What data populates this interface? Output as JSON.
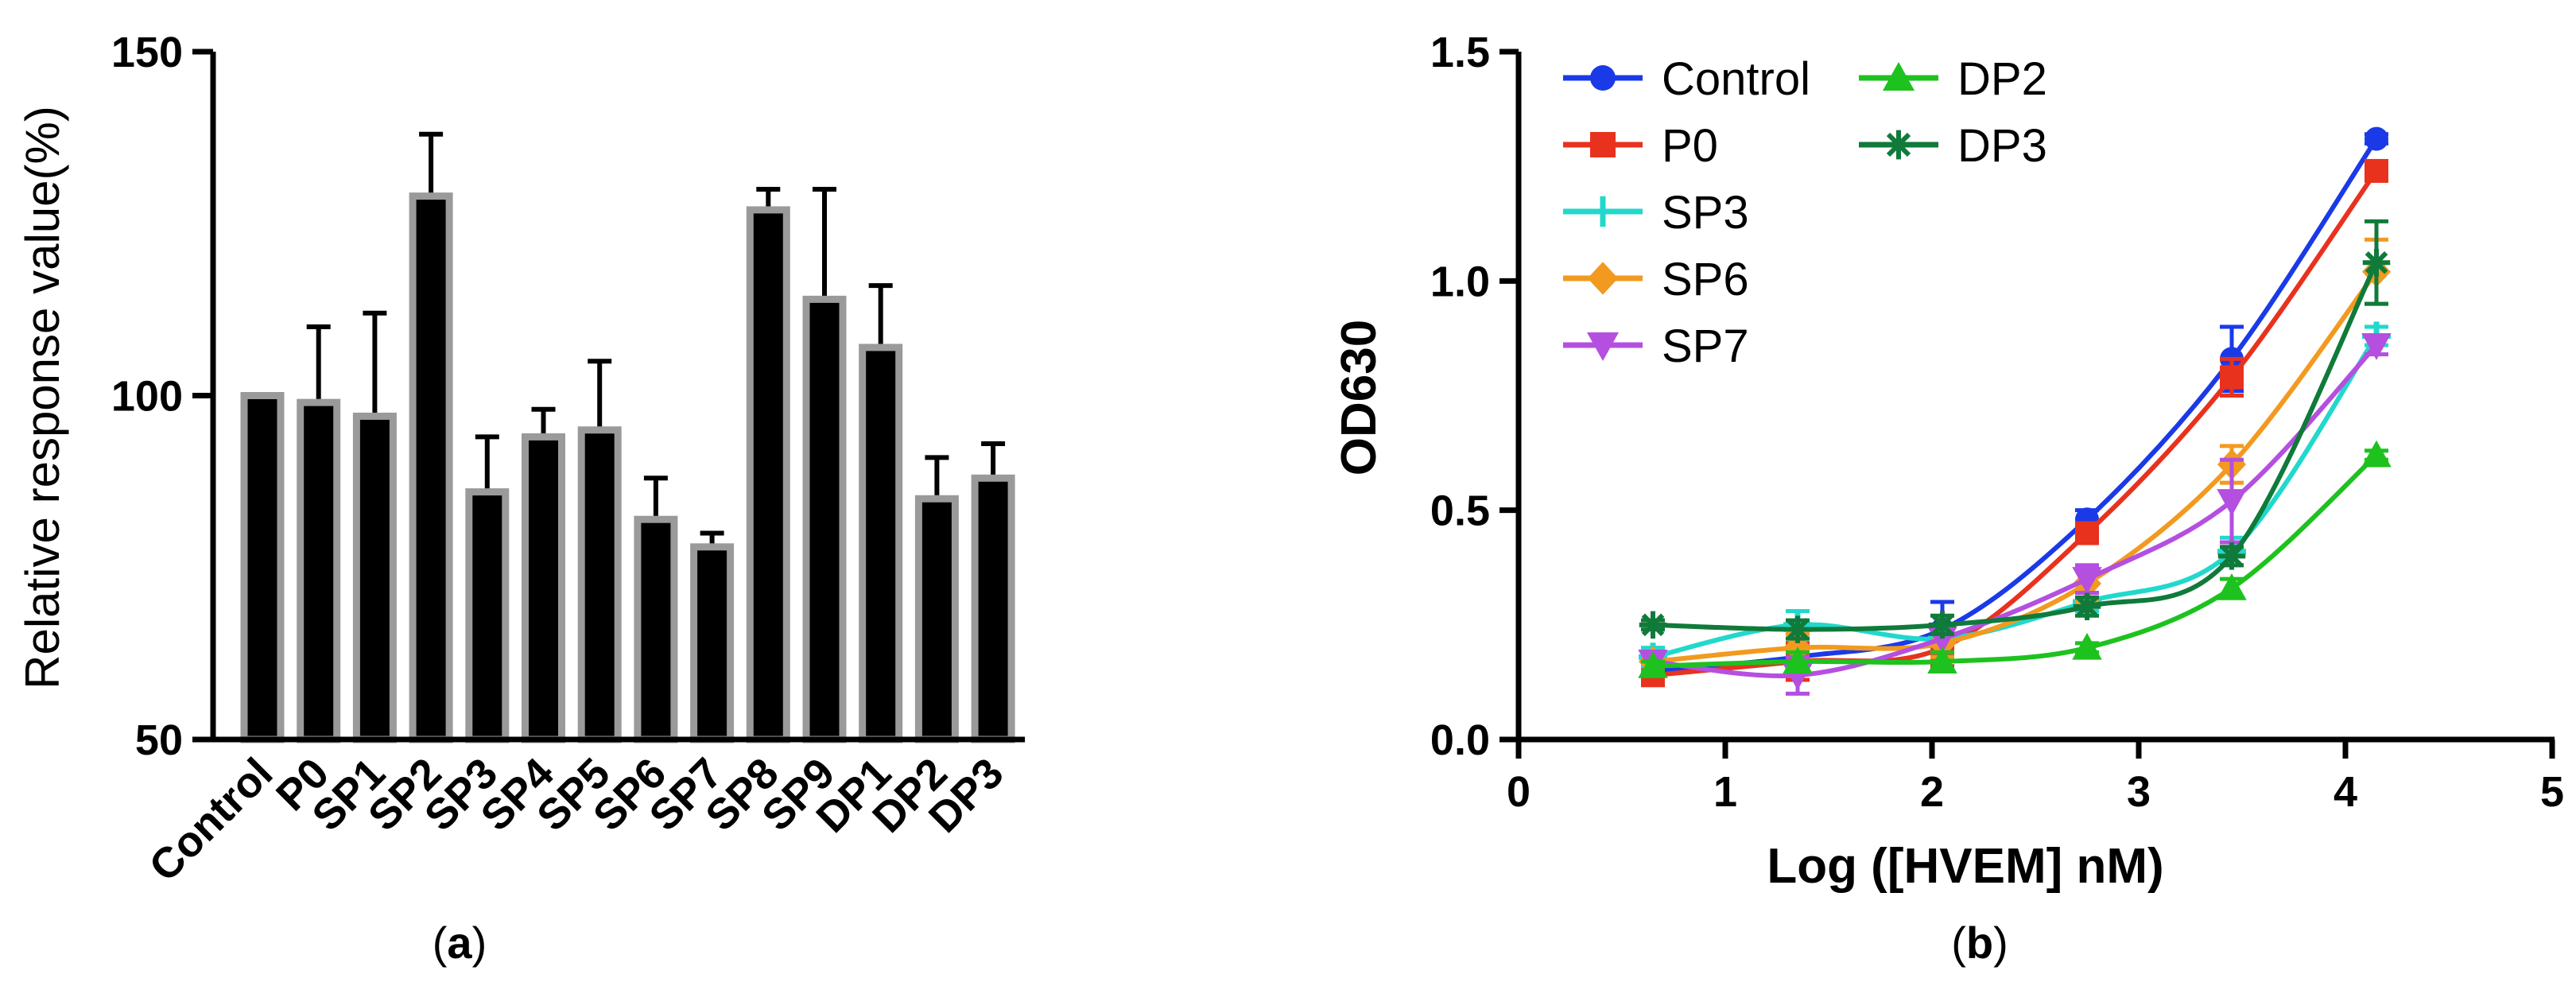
{
  "chart_data": [
    {
      "type": "bar",
      "panel_label": "a",
      "title": "",
      "xlabel": "",
      "ylabel": "Relative response value(%)",
      "ylim": [
        50,
        150
      ],
      "yticks": [
        50,
        100,
        150
      ],
      "categories": [
        "Control",
        "P0",
        "SP1",
        "SP2",
        "SP3",
        "SP4",
        "SP5",
        "SP6",
        "SP7",
        "SP8",
        "SP9",
        "DP1",
        "DP2",
        "DP3"
      ],
      "values": [
        100,
        99,
        97,
        129,
        86,
        94,
        95,
        82,
        78,
        127,
        114,
        107,
        85,
        88
      ],
      "errors": [
        0,
        11,
        15,
        9,
        8,
        4,
        10,
        6,
        2,
        3,
        16,
        9,
        6,
        5
      ],
      "bar_fill": "#000000",
      "bar_edge": "#9a9a9a"
    },
    {
      "type": "line",
      "panel_label": "b",
      "title": "",
      "xlabel": "Log ([HVEM] nM)",
      "ylabel": "OD630",
      "xlim": [
        0,
        5
      ],
      "ylim": [
        0,
        1.5
      ],
      "xticks": [
        0,
        1,
        2,
        3,
        4,
        5
      ],
      "yticks": [
        "0.0",
        "0.5",
        "1.0",
        "1.5"
      ],
      "x": [
        0.65,
        1.35,
        2.05,
        2.75,
        3.45,
        4.15
      ],
      "series": [
        {
          "name": "Control",
          "color": "#1a3ae8",
          "marker": "circle",
          "values": [
            0.15,
            0.18,
            0.24,
            0.48,
            0.83,
            1.31
          ],
          "errors": [
            0.02,
            0.03,
            0.06,
            0.02,
            0.07,
            0.01
          ]
        },
        {
          "name": "P0",
          "color": "#e8321e",
          "marker": "square",
          "values": [
            0.14,
            0.17,
            0.2,
            0.45,
            0.79,
            1.24
          ],
          "errors": [
            0.02,
            0.04,
            0.04,
            0.02,
            0.04,
            0.01
          ]
        },
        {
          "name": "SP3",
          "color": "#22d8cc",
          "marker": "plus",
          "values": [
            0.18,
            0.25,
            0.22,
            0.3,
            0.41,
            0.88
          ],
          "errors": [
            0.02,
            0.03,
            0.03,
            0.02,
            0.03,
            0.02
          ]
        },
        {
          "name": "SP6",
          "color": "#f29a1f",
          "marker": "diamond",
          "values": [
            0.17,
            0.2,
            0.21,
            0.34,
            0.6,
            1.02
          ],
          "errors": [
            0.02,
            0.03,
            0.03,
            0.04,
            0.04,
            0.07
          ]
        },
        {
          "name": "SP7",
          "color": "#b44fe0",
          "marker": "triangle-down",
          "values": [
            0.17,
            0.14,
            0.22,
            0.35,
            0.52,
            0.86
          ],
          "errors": [
            0.02,
            0.04,
            0.03,
            0.03,
            0.09,
            0.02
          ]
        },
        {
          "name": "DP2",
          "color": "#1ec21e",
          "marker": "triangle-up",
          "values": [
            0.16,
            0.17,
            0.17,
            0.2,
            0.33,
            0.62
          ],
          "errors": [
            0.01,
            0.02,
            0.02,
            0.01,
            0.02,
            0.01
          ]
        },
        {
          "name": "DP3",
          "color": "#107a3a",
          "marker": "asterisk",
          "values": [
            0.25,
            0.24,
            0.25,
            0.29,
            0.4,
            1.04
          ],
          "errors": [
            0.01,
            0.02,
            0.02,
            0.02,
            0.02,
            0.09
          ]
        }
      ],
      "legend": {
        "placement": "top-left",
        "columns": [
          [
            "Control",
            "P0",
            "SP3",
            "SP6",
            "SP7"
          ],
          [
            "DP2",
            "DP3"
          ]
        ]
      }
    }
  ]
}
